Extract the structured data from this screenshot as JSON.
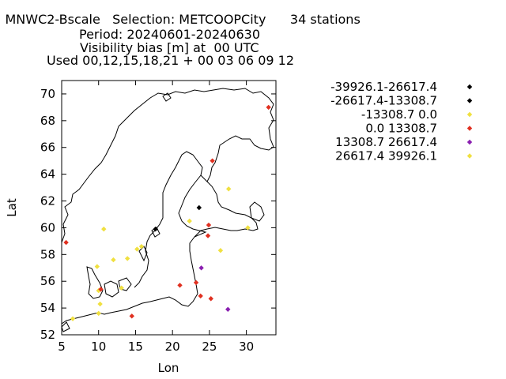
{
  "title": {
    "line1": ": MNWC2-Bscale   Selection: METCOOPCity      34 stations",
    "line2": "Period: 20240601-20240630",
    "line3": "Visibility bias [m] at  00 UTC",
    "line4": "Used 00,12,15,18,21 + 00 03 06 09 12"
  },
  "chart_data": {
    "type": "scatter",
    "xlabel": "Lon",
    "ylabel": "Lat",
    "xlim": [
      5,
      34
    ],
    "ylim": [
      52,
      71
    ],
    "xticks": [
      5,
      10,
      15,
      20,
      25,
      30
    ],
    "yticks": [
      52,
      54,
      56,
      58,
      60,
      62,
      64,
      66,
      68,
      70
    ],
    "grid": false,
    "legend_position": "right",
    "series": [
      {
        "name": "-39926.1-26617.4",
        "color": "#000000",
        "points": []
      },
      {
        "name": "-26617.4-13308.7",
        "color": "#000000",
        "points": [
          [
            23.6,
            61.5
          ],
          [
            17.7,
            59.9
          ]
        ]
      },
      {
        "name": "-13308.7 0.0",
        "color": "#f0e040",
        "points": [
          [
            10.7,
            59.9
          ],
          [
            12.0,
            57.6
          ],
          [
            13.9,
            57.7
          ],
          [
            15.2,
            58.4
          ],
          [
            15.8,
            58.6
          ],
          [
            22.3,
            60.5
          ],
          [
            26.5,
            58.3
          ],
          [
            27.6,
            62.9
          ],
          [
            30.2,
            60.0
          ],
          [
            9.8,
            57.1
          ],
          [
            10.0,
            55.3
          ],
          [
            10.2,
            54.3
          ],
          [
            10.0,
            53.6
          ],
          [
            6.5,
            53.2
          ],
          [
            13.1,
            55.5
          ]
        ]
      },
      {
        "name": "0.0 13308.7",
        "color": "#e03020",
        "points": [
          [
            33.0,
            69.0
          ],
          [
            25.4,
            65.0
          ],
          [
            24.9,
            60.2
          ],
          [
            24.8,
            59.4
          ],
          [
            21.0,
            55.7
          ],
          [
            23.2,
            55.9
          ],
          [
            23.8,
            54.9
          ],
          [
            25.2,
            54.7
          ],
          [
            14.5,
            53.4
          ],
          [
            10.3,
            55.4
          ],
          [
            5.6,
            58.9
          ]
        ]
      },
      {
        "name": "13308.7 26617.4",
        "color": "#8a1fb0",
        "points": [
          [
            23.9,
            57.0
          ],
          [
            27.5,
            53.9
          ]
        ]
      },
      {
        "name": "26617.4 39926.1",
        "color": "#f0e040",
        "points": []
      }
    ]
  }
}
